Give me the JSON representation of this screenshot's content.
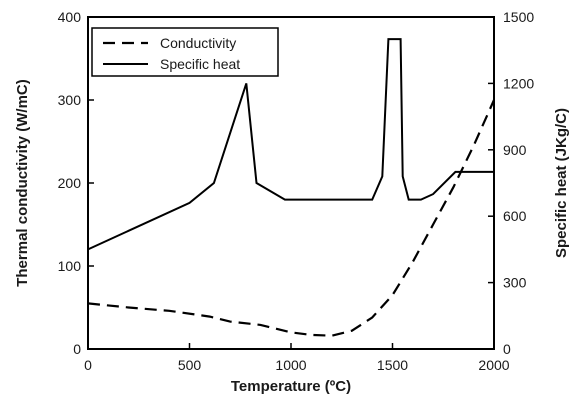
{
  "chart_data": {
    "type": "line",
    "xlabel": "Temperature (ºC)",
    "ylabel_left": "Thermal conductivity (W/mC)",
    "ylabel_right": "Specific heat (JKg/C)",
    "xlim": [
      0,
      2000
    ],
    "ylim_left": [
      0,
      400
    ],
    "ylim_right": [
      0,
      1500
    ],
    "x_ticks": [
      0,
      500,
      1000,
      1500,
      2000
    ],
    "y_left_ticks": [
      0,
      100,
      200,
      300,
      400
    ],
    "y_right_ticks": [
      0,
      300,
      600,
      900,
      1200,
      1500
    ],
    "grid": false,
    "legend_position": "top-left",
    "series": [
      {
        "name": "Conductivity",
        "axis": "left",
        "style": "dashed",
        "x": [
          0,
          200,
          400,
          600,
          700,
          850,
          1000,
          1100,
          1200,
          1300,
          1400,
          1500,
          1600,
          1700,
          1800,
          1900,
          2000
        ],
        "y": [
          55,
          50,
          46,
          39,
          33,
          29,
          20,
          17,
          16,
          22,
          38,
          65,
          105,
          150,
          195,
          245,
          300
        ]
      },
      {
        "name": "Specific heat",
        "axis": "right",
        "style": "solid",
        "x": [
          0,
          500,
          620,
          780,
          830,
          970,
          1400,
          1450,
          1480,
          1540,
          1550,
          1580,
          1640,
          1700,
          1810,
          2000
        ],
        "y": [
          450,
          660,
          750,
          1200,
          750,
          675,
          675,
          780,
          1400,
          1400,
          780,
          675,
          675,
          700,
          800,
          800
        ]
      }
    ]
  },
  "colors": {
    "line": "#000000",
    "axis": "#000000",
    "text": "#1a1a1a"
  }
}
